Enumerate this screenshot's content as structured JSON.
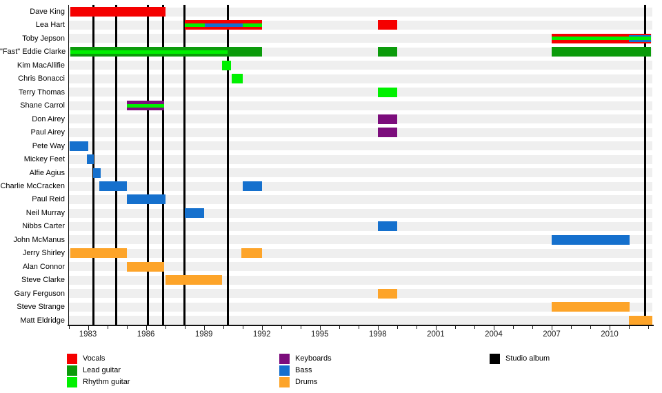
{
  "page": {
    "background": "#ffffff"
  },
  "chart_data": {
    "type": "timeline",
    "x_axis": {
      "start": 1982,
      "end": 2012.2,
      "labeled_years": [
        1983,
        1986,
        1989,
        1992,
        1995,
        1998,
        2001,
        2004,
        2007,
        2010
      ],
      "minor_tick_every_year": true
    },
    "roles": {
      "vocals": {
        "label": "Vocals",
        "color": "#f50000"
      },
      "lead_guitar": {
        "label": "Lead guitar",
        "color": "#0b9b0b"
      },
      "rhythm_guitar": {
        "label": "Rhythm guitar",
        "color": "#00f000"
      },
      "keyboards": {
        "label": "Keyboards",
        "color": "#7c0d7c"
      },
      "bass": {
        "label": "Bass",
        "color": "#1570cd"
      },
      "drums": {
        "label": "Drums",
        "color": "#fda429"
      },
      "studio_album": {
        "label": "Studio album",
        "color": "#000000"
      }
    },
    "studio_albums": [
      1983.27,
      1984.48,
      1986.12,
      1986.9,
      1988.0,
      1990.23,
      2011.85
    ],
    "members": [
      {
        "name": "Dave King",
        "periods": [
          {
            "start": 1982.1,
            "end": 1987.0,
            "base": "vocals"
          }
        ]
      },
      {
        "name": "Lea Hart",
        "periods": [
          {
            "start": 1988.0,
            "end": 1992.0,
            "base": "vocals",
            "stripes": [
              {
                "role": "rhythm_guitar",
                "pos": "center",
                "start": 1988.0,
                "end": 1992.0
              },
              {
                "role": "bass",
                "pos": "center",
                "start": 1989.05,
                "end": 1991.0
              }
            ]
          },
          {
            "start": 1998.0,
            "end": 1999.0,
            "base": "vocals"
          }
        ]
      },
      {
        "name": "Toby Jepson",
        "periods": [
          {
            "start": 2007.0,
            "end": 2012.15,
            "base": "vocals",
            "stripes": [
              {
                "role": "rhythm_guitar",
                "pos": "center",
                "start": 2007.0,
                "end": 2012.15
              },
              {
                "role": "bass",
                "pos": "edges",
                "start": 2011.0,
                "end": 2012.15
              }
            ]
          }
        ]
      },
      {
        "name": "\"Fast\" Eddie Clarke",
        "periods": [
          {
            "start": 1982.1,
            "end": 1992.0,
            "base": "lead_guitar",
            "stripes": [
              {
                "role": "rhythm_guitar",
                "pos": "center",
                "start": 1982.1,
                "end": 1990.23
              }
            ]
          },
          {
            "start": 1998.0,
            "end": 1999.0,
            "base": "lead_guitar"
          },
          {
            "start": 2007.0,
            "end": 2012.15,
            "base": "lead_guitar"
          }
        ]
      },
      {
        "name": "Kim MacAllifie",
        "periods": [
          {
            "start": 1989.95,
            "end": 1990.4,
            "base": "rhythm_guitar"
          }
        ]
      },
      {
        "name": "Chris Bonacci",
        "periods": [
          {
            "start": 1990.45,
            "end": 1991.0,
            "base": "rhythm_guitar"
          }
        ]
      },
      {
        "name": "Terry Thomas",
        "periods": [
          {
            "start": 1998.0,
            "end": 1999.0,
            "base": "rhythm_guitar"
          }
        ]
      },
      {
        "name": "Shane Carrol",
        "periods": [
          {
            "start": 1985.0,
            "end": 1986.95,
            "base": "keyboards",
            "stripes": [
              {
                "role": "rhythm_guitar",
                "pos": "center",
                "start": 1985.0,
                "end": 1986.95
              }
            ]
          }
        ]
      },
      {
        "name": "Don Airey",
        "periods": [
          {
            "start": 1998.0,
            "end": 1999.0,
            "base": "keyboards"
          }
        ]
      },
      {
        "name": "Paul Airey",
        "periods": [
          {
            "start": 1998.0,
            "end": 1999.0,
            "base": "keyboards"
          }
        ]
      },
      {
        "name": "Pete Way",
        "periods": [
          {
            "start": 1982.05,
            "end": 1983.0,
            "base": "bass"
          }
        ]
      },
      {
        "name": "Mickey Feet",
        "periods": [
          {
            "start": 1982.95,
            "end": 1983.3,
            "base": "bass"
          }
        ]
      },
      {
        "name": "Alfie Agius",
        "periods": [
          {
            "start": 1983.25,
            "end": 1983.65,
            "base": "bass"
          }
        ]
      },
      {
        "name": "Charlie McCracken",
        "periods": [
          {
            "start": 1983.6,
            "end": 1985.0,
            "base": "bass"
          },
          {
            "start": 1991.0,
            "end": 1992.0,
            "base": "bass"
          }
        ]
      },
      {
        "name": "Paul Reid",
        "periods": [
          {
            "start": 1985.0,
            "end": 1987.0,
            "base": "bass"
          }
        ]
      },
      {
        "name": "Neil Murray",
        "periods": [
          {
            "start": 1988.0,
            "end": 1989.0,
            "base": "bass"
          }
        ]
      },
      {
        "name": "Nibbs Carter",
        "periods": [
          {
            "start": 1998.0,
            "end": 1999.0,
            "base": "bass"
          }
        ]
      },
      {
        "name": "John McManus",
        "periods": [
          {
            "start": 2007.0,
            "end": 2011.05,
            "base": "bass"
          }
        ]
      },
      {
        "name": "Jerry Shirley",
        "periods": [
          {
            "start": 1982.1,
            "end": 1985.0,
            "base": "drums"
          },
          {
            "start": 1990.95,
            "end": 1992.0,
            "base": "drums"
          }
        ]
      },
      {
        "name": "Alan Connor",
        "periods": [
          {
            "start": 1985.0,
            "end": 1986.95,
            "base": "drums"
          }
        ]
      },
      {
        "name": "Steve Clarke",
        "periods": [
          {
            "start": 1987.0,
            "end": 1989.95,
            "base": "drums"
          }
        ]
      },
      {
        "name": "Gary Ferguson",
        "periods": [
          {
            "start": 1998.0,
            "end": 1999.0,
            "base": "drums"
          }
        ]
      },
      {
        "name": "Steve Strange",
        "periods": [
          {
            "start": 2007.0,
            "end": 2011.05,
            "base": "drums"
          }
        ]
      },
      {
        "name": "Matt Eldridge",
        "periods": [
          {
            "start": 2011.0,
            "end": 2012.2,
            "base": "drums"
          }
        ]
      }
    ],
    "legend": {
      "items": [
        {
          "role": "vocals",
          "label": "Vocals",
          "col": 0,
          "row": 0
        },
        {
          "role": "lead_guitar",
          "label": "Lead guitar",
          "col": 0,
          "row": 1
        },
        {
          "role": "rhythm_guitar",
          "label": "Rhythm guitar",
          "col": 0,
          "row": 2
        },
        {
          "role": "keyboards",
          "label": "Keyboards",
          "col": 1,
          "row": 0
        },
        {
          "role": "bass",
          "label": "Bass",
          "col": 1,
          "row": 1
        },
        {
          "role": "drums",
          "label": "Drums",
          "col": 1,
          "row": 2
        },
        {
          "role": "studio_album",
          "label": "Studio album",
          "col": 2,
          "row": 0
        }
      ]
    }
  }
}
